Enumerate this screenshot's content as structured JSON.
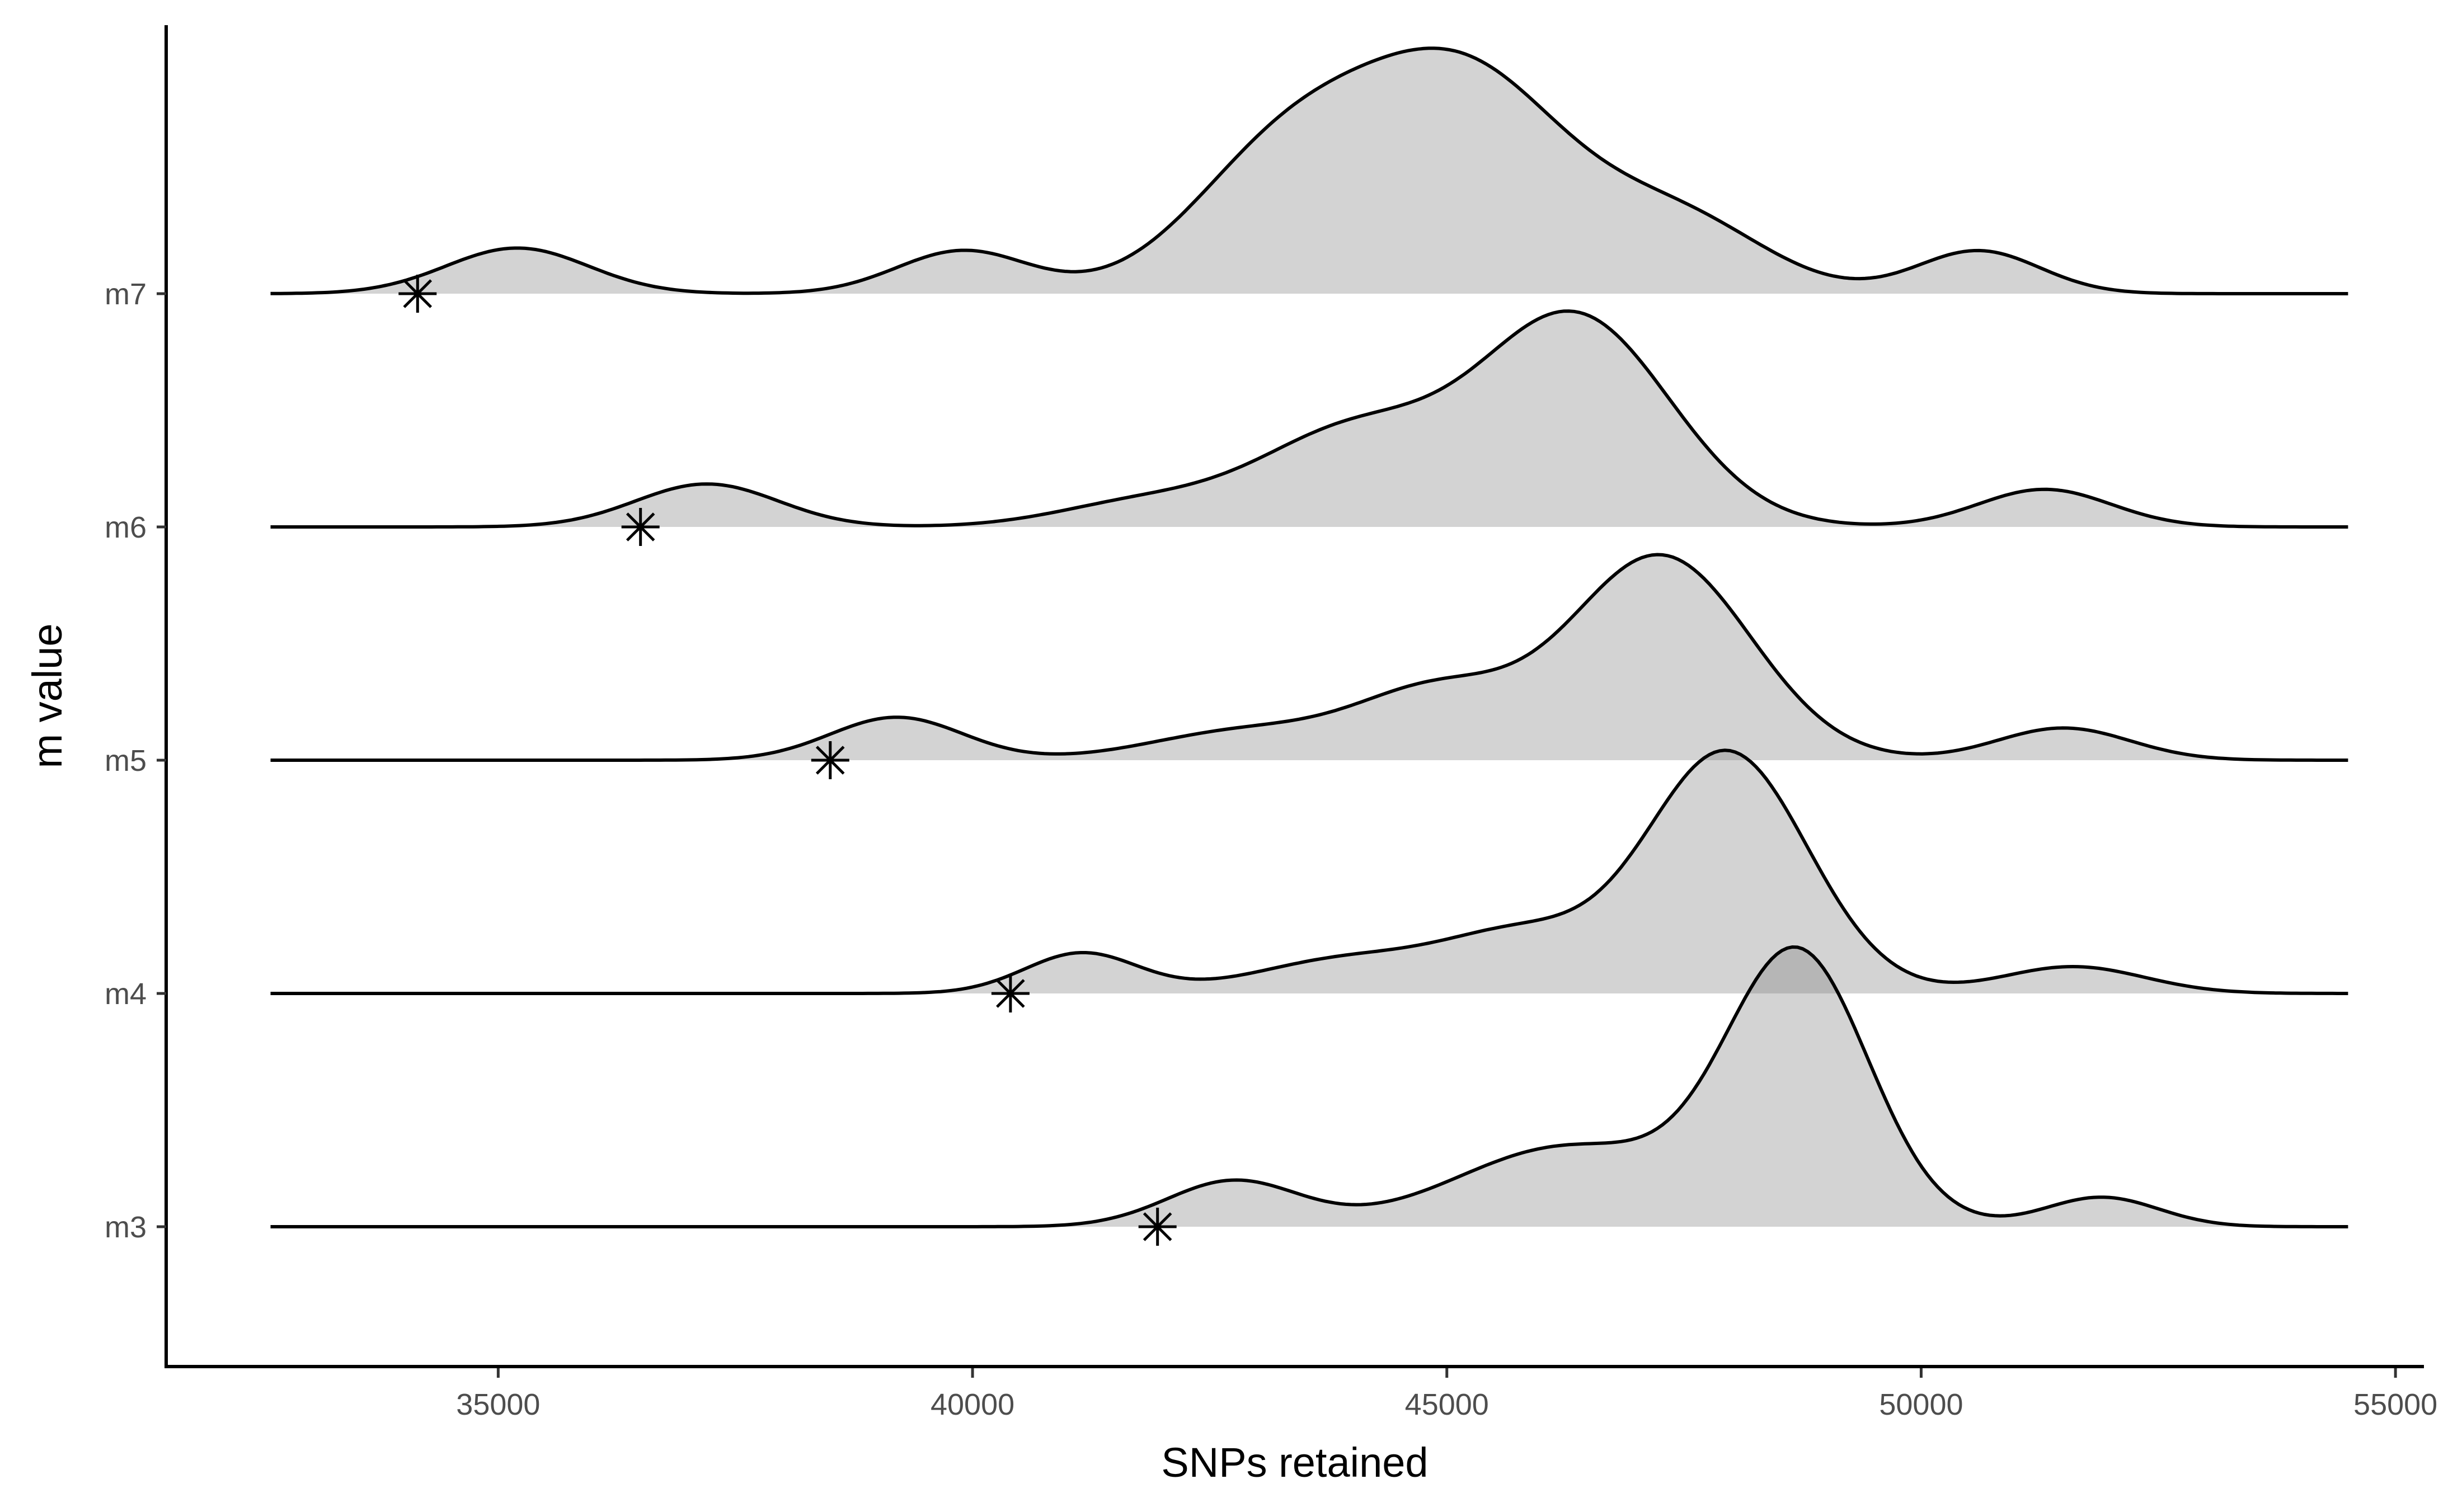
{
  "chart_data": {
    "type": "ridgeline",
    "title": "",
    "xlabel": "SNPs retained",
    "ylabel": "m value",
    "xlim": [
      31500,
      55300
    ],
    "x_ticks": [
      35000,
      40000,
      45000,
      50000,
      55000
    ],
    "x_tick_labels": [
      "35000",
      "40000",
      "45000",
      "50000",
      "55000"
    ],
    "x_range_drawn": [
      32600,
      54500
    ],
    "ridge_scale": 1.15,
    "grid": false,
    "legend": "none",
    "colors": {
      "fill": "#808080",
      "fill_opacity": 0.35,
      "line": "#000000",
      "axis": "#000000",
      "tick_text": "#4d4d4d"
    },
    "categories": [
      "m3",
      "m4",
      "m5",
      "m6",
      "m7"
    ],
    "series": [
      {
        "name": "m3",
        "marker_x": 41950,
        "components": [
          {
            "mu": 42750,
            "sd": 700,
            "w": 0.17
          },
          {
            "mu": 46300,
            "sd": 1200,
            "w": 0.3
          },
          {
            "mu": 48700,
            "sd": 750,
            "w": 1.0
          },
          {
            "mu": 51900,
            "sd": 600,
            "w": 0.11
          }
        ]
      },
      {
        "name": "m4",
        "marker_x": 40400,
        "components": [
          {
            "mu": 41150,
            "sd": 600,
            "w": 0.15
          },
          {
            "mu": 44000,
            "sd": 1000,
            "w": 0.13
          },
          {
            "mu": 45800,
            "sd": 800,
            "w": 0.2
          },
          {
            "mu": 47950,
            "sd": 850,
            "w": 0.9
          },
          {
            "mu": 51600,
            "sd": 750,
            "w": 0.1
          }
        ]
      },
      {
        "name": "m5",
        "marker_x": 38500,
        "components": [
          {
            "mu": 39200,
            "sd": 700,
            "w": 0.16
          },
          {
            "mu": 42900,
            "sd": 1000,
            "w": 0.11
          },
          {
            "mu": 44900,
            "sd": 850,
            "w": 0.25
          },
          {
            "mu": 47250,
            "sd": 950,
            "w": 0.76
          },
          {
            "mu": 51500,
            "sd": 700,
            "w": 0.12
          }
        ]
      },
      {
        "name": "m6",
        "marker_x": 36500,
        "components": [
          {
            "mu": 37200,
            "sd": 750,
            "w": 0.16
          },
          {
            "mu": 41800,
            "sd": 900,
            "w": 0.09
          },
          {
            "mu": 44000,
            "sd": 1000,
            "w": 0.35
          },
          {
            "mu": 46350,
            "sd": 1000,
            "w": 0.78
          },
          {
            "mu": 51300,
            "sd": 700,
            "w": 0.14
          }
        ]
      },
      {
        "name": "m7",
        "marker_x": 34150,
        "components": [
          {
            "mu": 35200,
            "sd": 750,
            "w": 0.17
          },
          {
            "mu": 39900,
            "sd": 700,
            "w": 0.16
          },
          {
            "mu": 43300,
            "sd": 1000,
            "w": 0.5
          },
          {
            "mu": 45200,
            "sd": 1100,
            "w": 0.8
          },
          {
            "mu": 47500,
            "sd": 900,
            "w": 0.25
          },
          {
            "mu": 50600,
            "sd": 650,
            "w": 0.16
          }
        ]
      }
    ]
  }
}
